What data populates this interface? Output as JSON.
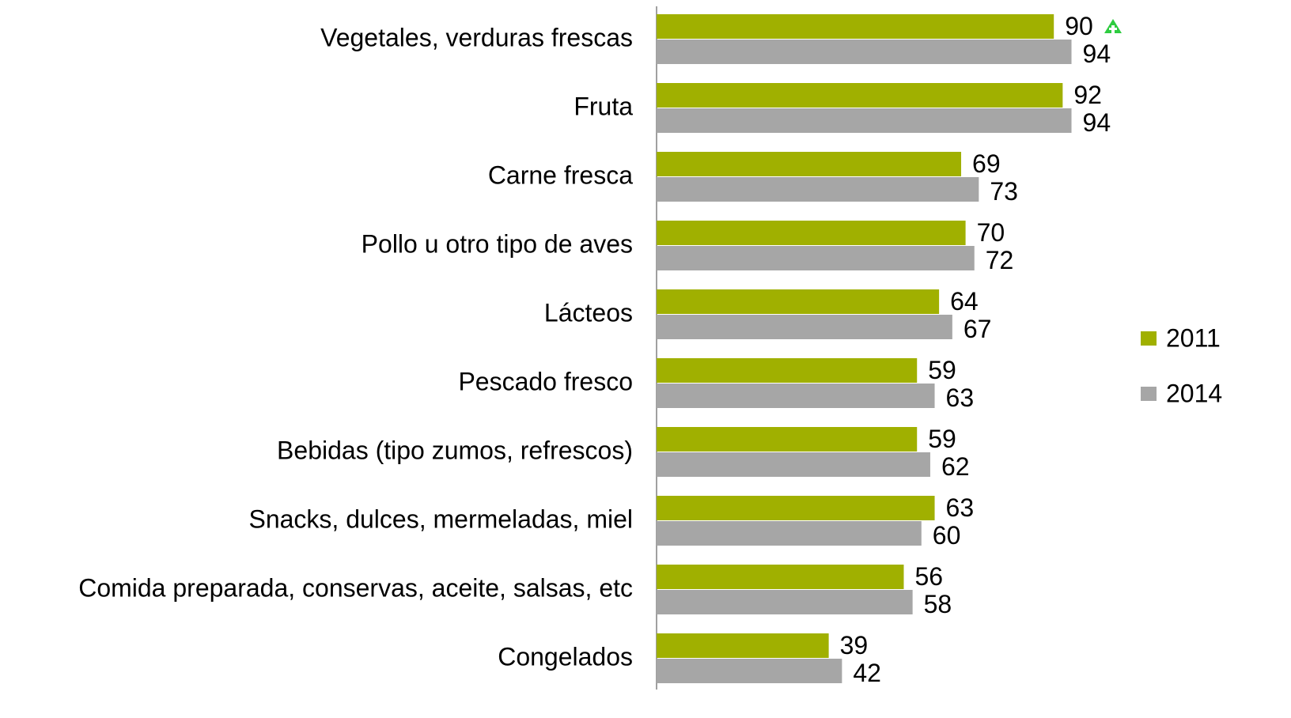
{
  "chart_data": {
    "type": "hbar",
    "categories": [
      "Vegetales, verduras frescas",
      "Fruta",
      "Carne fresca",
      "Pollo u otro tipo de aves",
      "Lácteos",
      "Pescado fresco",
      "Bebidas (tipo zumos, refrescos)",
      "Snacks, dulces, mermeladas, miel",
      "Comida preparada, conservas, aceite, salsas, etc",
      "Congelados"
    ],
    "series": [
      {
        "name": "2011",
        "color": "#a0b000",
        "values": [
          90,
          92,
          69,
          70,
          64,
          59,
          59,
          63,
          56,
          39
        ]
      },
      {
        "name": "2014",
        "color": "#a6a6a6",
        "values": [
          94,
          94,
          73,
          72,
          67,
          63,
          62,
          60,
          58,
          42
        ]
      }
    ],
    "xlim": [
      0,
      100
    ],
    "legend": "right"
  }
}
